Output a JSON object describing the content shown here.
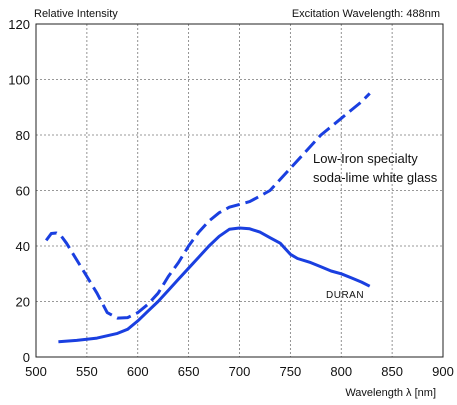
{
  "chart_data": {
    "type": "line",
    "title": "",
    "ylabel": "Relative Intensity",
    "xlabel": "Wavelength λ [nm]",
    "subtitle": "Excitation Wavelength: 488nm",
    "xlim": [
      500,
      900
    ],
    "ylim": [
      0,
      120
    ],
    "xticks": [
      500,
      550,
      600,
      650,
      700,
      750,
      800,
      850,
      900
    ],
    "yticks": [
      0,
      20,
      40,
      60,
      80,
      100,
      120
    ],
    "grid": true,
    "line_color": "#1a3fe0",
    "series": [
      {
        "name": "Low-Iron specialty soda-lime white glass",
        "label_lines": [
          "Low-Iron specialty",
          "soda-lime white glass"
        ],
        "style": "dashed",
        "points": [
          [
            510,
            42
          ],
          [
            515,
            44.5
          ],
          [
            520,
            44.7
          ],
          [
            525,
            43.5
          ],
          [
            530,
            41
          ],
          [
            540,
            35
          ],
          [
            550,
            29
          ],
          [
            560,
            23
          ],
          [
            570,
            16
          ],
          [
            580,
            14
          ],
          [
            590,
            14.2
          ],
          [
            600,
            16
          ],
          [
            610,
            19
          ],
          [
            620,
            23
          ],
          [
            630,
            29
          ],
          [
            640,
            34
          ],
          [
            650,
            40
          ],
          [
            660,
            45
          ],
          [
            670,
            49
          ],
          [
            680,
            52
          ],
          [
            690,
            54
          ],
          [
            700,
            55
          ],
          [
            710,
            56
          ],
          [
            720,
            58
          ],
          [
            730,
            60
          ],
          [
            740,
            64
          ],
          [
            750,
            68
          ],
          [
            760,
            72
          ],
          [
            770,
            76
          ],
          [
            780,
            80
          ],
          [
            790,
            83
          ],
          [
            800,
            86
          ],
          [
            810,
            89
          ],
          [
            820,
            92
          ],
          [
            828,
            95
          ]
        ]
      },
      {
        "name": "DURAN",
        "label_lines": [
          "DURAN"
        ],
        "style": "solid",
        "points": [
          [
            522,
            5.5
          ],
          [
            540,
            6
          ],
          [
            560,
            6.8
          ],
          [
            580,
            8.5
          ],
          [
            590,
            10
          ],
          [
            600,
            13
          ],
          [
            610,
            16.5
          ],
          [
            620,
            20
          ],
          [
            630,
            24
          ],
          [
            640,
            28
          ],
          [
            650,
            32
          ],
          [
            660,
            36
          ],
          [
            670,
            40
          ],
          [
            680,
            43.5
          ],
          [
            690,
            46
          ],
          [
            700,
            46.5
          ],
          [
            710,
            46.2
          ],
          [
            720,
            45
          ],
          [
            730,
            43
          ],
          [
            740,
            41
          ],
          [
            750,
            37
          ],
          [
            757,
            35.5
          ],
          [
            770,
            34
          ],
          [
            780,
            32.5
          ],
          [
            790,
            31
          ],
          [
            800,
            30
          ],
          [
            810,
            28.5
          ],
          [
            820,
            27
          ],
          [
            828,
            25.5
          ]
        ]
      }
    ]
  }
}
